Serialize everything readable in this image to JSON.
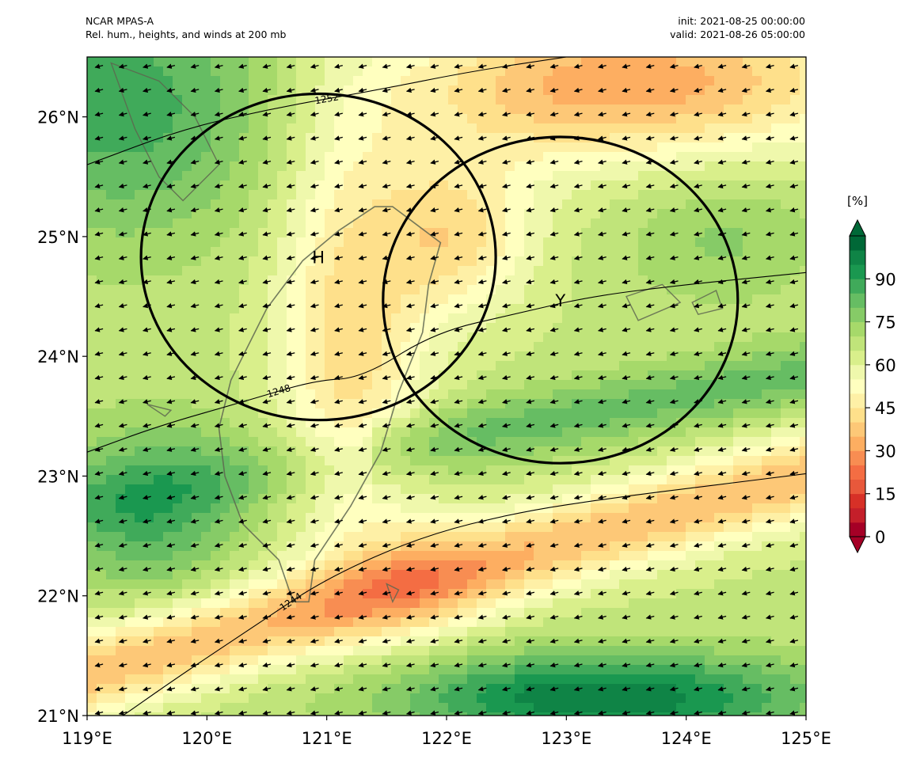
{
  "header": {
    "model": "NCAR MPAS-A",
    "description": "Rel. hum., heights, and winds at 200 mb",
    "init": "init: 2021-08-25 00:00:00",
    "valid": "valid: 2021-08-26 05:00:00"
  },
  "map": {
    "lon_range": [
      119.0,
      125.0
    ],
    "lat_range": [
      21.0,
      26.5
    ],
    "x_ticks": [
      "119°E",
      "120°E",
      "121°E",
      "122°E",
      "123°E",
      "124°E",
      "125°E"
    ],
    "x_tick_values": [
      119,
      120,
      121,
      122,
      123,
      124,
      125
    ],
    "y_ticks": [
      "21°N",
      "22°N",
      "23°N",
      "24°N",
      "25°N",
      "26°N"
    ],
    "y_tick_values": [
      21,
      22,
      23,
      24,
      25,
      26
    ],
    "contours": [
      {
        "label": "1252",
        "points": [
          [
            119,
            25.6
          ],
          [
            119.8,
            25.9
          ],
          [
            120.6,
            26.08
          ],
          [
            121.4,
            26.22
          ],
          [
            122.2,
            26.38
          ],
          [
            123.0,
            26.5
          ]
        ]
      },
      {
        "label": "1248",
        "points": [
          [
            119,
            23.2
          ],
          [
            119.6,
            23.42
          ],
          [
            120.3,
            23.62
          ],
          [
            120.9,
            23.8
          ],
          [
            121.3,
            23.82
          ],
          [
            121.9,
            24.2
          ],
          [
            122.6,
            24.36
          ],
          [
            123.2,
            24.5
          ],
          [
            124.0,
            24.6
          ],
          [
            125.0,
            24.7
          ]
        ]
      },
      {
        "label": "1244",
        "points": [
          [
            119.3,
            21.0
          ],
          [
            119.8,
            21.35
          ],
          [
            120.4,
            21.75
          ],
          [
            121.0,
            22.15
          ],
          [
            121.8,
            22.5
          ],
          [
            122.6,
            22.7
          ],
          [
            123.4,
            22.82
          ],
          [
            124.2,
            22.92
          ],
          [
            125.0,
            23.02
          ]
        ]
      }
    ],
    "circles": [
      {
        "label": "H",
        "center": [
          120.93,
          24.83
        ],
        "radius_deg": 1.48
      },
      {
        "label": "Y",
        "center": [
          122.95,
          24.47
        ],
        "radius_deg": 1.48
      }
    ],
    "coastline_color": "#5e6650"
  },
  "colorbar": {
    "unit": "[%]",
    "ticks": [
      "0",
      "15",
      "30",
      "45",
      "60",
      "75",
      "90"
    ],
    "tick_values": [
      0,
      15,
      30,
      45,
      60,
      75,
      90
    ],
    "colors": [
      "#a50026",
      "#c41f2a",
      "#d73027",
      "#e8583b",
      "#f46d43",
      "#f88d52",
      "#fdae61",
      "#fdc877",
      "#fee08b",
      "#fef0a6",
      "#ffffbf",
      "#eff8ac",
      "#d9ef8b",
      "#c0e47a",
      "#a6d96a",
      "#86cb67",
      "#66bd63",
      "#40aa5a",
      "#1a9850",
      "#0f8446",
      "#006837"
    ]
  },
  "field": {
    "variable": "relative humidity",
    "units": "%",
    "dry_band_center": "southwest to northeast, 21.3°N at 119°E rising to 23.0°N at 125°E",
    "moist_band_south": "centered 21.2°N around 123°E, above 90%"
  }
}
